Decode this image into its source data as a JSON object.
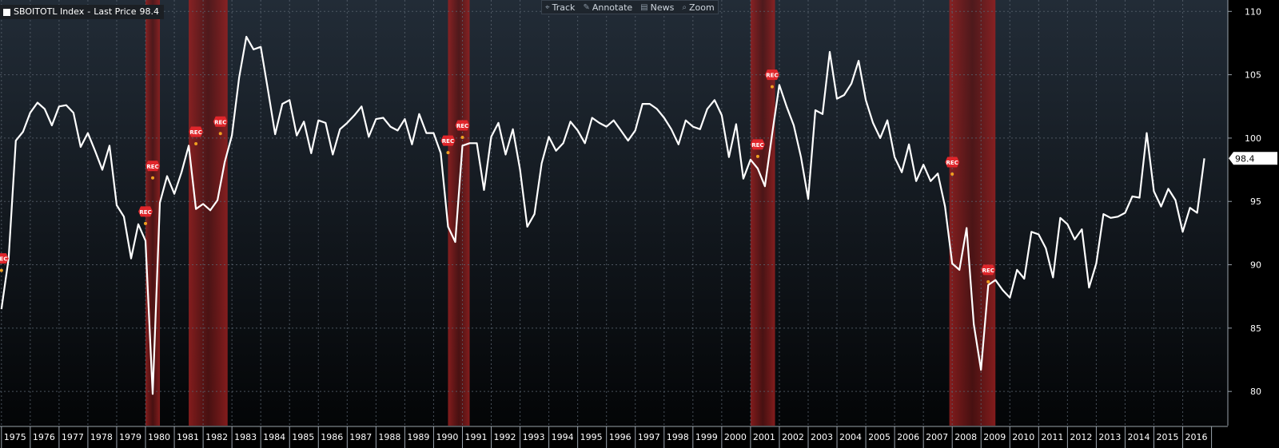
{
  "legend": {
    "ticker": "SBOITOTL Index",
    "separator": " - ",
    "label": "Last Price",
    "last_value": "98.4"
  },
  "toolbar": [
    {
      "name": "track",
      "label": "Track",
      "icon": "crosshair-icon",
      "glyph": "⌖"
    },
    {
      "name": "annotate",
      "label": "Annotate",
      "icon": "pencil-icon",
      "glyph": "✎"
    },
    {
      "name": "news",
      "label": "News",
      "icon": "news-icon",
      "glyph": "▤"
    },
    {
      "name": "zoom",
      "label": "Zoom",
      "icon": "magnifier-icon",
      "glyph": "⌕"
    }
  ],
  "recession_marker_label": "REC",
  "last_price_label": "98.4",
  "colors": {
    "line": "#ffffff",
    "recession": "#8b1c1c",
    "marker": "#e0262b",
    "marker_dot": "#f0a020",
    "grid": "#5a6470",
    "bg_top": "#222c37",
    "bg_bottom": "#020304",
    "axis_text": "#ffffff"
  },
  "chart_data": {
    "type": "line",
    "series": [
      {
        "name": "SBOITOTL Index - Last Price",
        "points": [
          [
            1975.0,
            86.5
          ],
          [
            1975.25,
            90.5
          ],
          [
            1975.5,
            99.8
          ],
          [
            1975.75,
            100.5
          ],
          [
            1976.0,
            102.0
          ],
          [
            1976.25,
            102.8
          ],
          [
            1976.5,
            102.3
          ],
          [
            1976.75,
            101.0
          ],
          [
            1977.0,
            102.5
          ],
          [
            1977.25,
            102.6
          ],
          [
            1977.5,
            102.0
          ],
          [
            1977.75,
            99.3
          ],
          [
            1978.0,
            100.4
          ],
          [
            1978.25,
            99.0
          ],
          [
            1978.5,
            97.5
          ],
          [
            1978.75,
            99.4
          ],
          [
            1979.0,
            94.7
          ],
          [
            1979.25,
            93.8
          ],
          [
            1979.5,
            90.5
          ],
          [
            1979.75,
            93.2
          ],
          [
            1980.0,
            91.9
          ],
          [
            1980.25,
            79.8
          ],
          [
            1980.5,
            94.9
          ],
          [
            1980.75,
            97.0
          ],
          [
            1981.0,
            95.6
          ],
          [
            1981.25,
            97.3
          ],
          [
            1981.5,
            99.4
          ],
          [
            1981.75,
            94.4
          ],
          [
            1982.0,
            94.8
          ],
          [
            1982.25,
            94.3
          ],
          [
            1982.5,
            95.1
          ],
          [
            1982.75,
            98.1
          ],
          [
            1983.0,
            100.2
          ],
          [
            1983.25,
            104.8
          ],
          [
            1983.5,
            108.0
          ],
          [
            1983.75,
            107.0
          ],
          [
            1984.0,
            107.2
          ],
          [
            1984.25,
            103.8
          ],
          [
            1984.5,
            100.3
          ],
          [
            1984.75,
            102.7
          ],
          [
            1985.0,
            103.0
          ],
          [
            1985.25,
            100.2
          ],
          [
            1985.5,
            101.3
          ],
          [
            1985.75,
            98.8
          ],
          [
            1986.0,
            101.4
          ],
          [
            1986.25,
            101.2
          ],
          [
            1986.5,
            98.7
          ],
          [
            1986.75,
            100.7
          ],
          [
            1987.0,
            101.2
          ],
          [
            1987.25,
            101.8
          ],
          [
            1987.5,
            102.5
          ],
          [
            1987.75,
            100.1
          ],
          [
            1988.0,
            101.5
          ],
          [
            1988.25,
            101.6
          ],
          [
            1988.5,
            100.9
          ],
          [
            1988.75,
            100.6
          ],
          [
            1989.0,
            101.5
          ],
          [
            1989.25,
            99.5
          ],
          [
            1989.5,
            101.9
          ],
          [
            1989.75,
            100.4
          ],
          [
            1990.0,
            100.4
          ],
          [
            1990.25,
            98.8
          ],
          [
            1990.5,
            93.0
          ],
          [
            1990.75,
            91.8
          ],
          [
            1991.0,
            99.4
          ],
          [
            1991.25,
            99.6
          ],
          [
            1991.5,
            99.6
          ],
          [
            1991.75,
            95.9
          ],
          [
            1992.0,
            100.1
          ],
          [
            1992.25,
            101.2
          ],
          [
            1992.5,
            98.7
          ],
          [
            1992.75,
            100.7
          ],
          [
            1993.0,
            97.5
          ],
          [
            1993.25,
            93.0
          ],
          [
            1993.5,
            94.0
          ],
          [
            1993.75,
            98.0
          ],
          [
            1994.0,
            100.1
          ],
          [
            1994.25,
            99.0
          ],
          [
            1994.5,
            99.6
          ],
          [
            1994.75,
            101.3
          ],
          [
            1995.0,
            100.6
          ],
          [
            1995.25,
            99.6
          ],
          [
            1995.5,
            101.6
          ],
          [
            1995.75,
            101.2
          ],
          [
            1996.0,
            100.9
          ],
          [
            1996.25,
            101.4
          ],
          [
            1996.5,
            100.6
          ],
          [
            1996.75,
            99.8
          ],
          [
            1997.0,
            100.6
          ],
          [
            1997.25,
            102.7
          ],
          [
            1997.5,
            102.7
          ],
          [
            1997.75,
            102.3
          ],
          [
            1998.0,
            101.6
          ],
          [
            1998.25,
            100.7
          ],
          [
            1998.5,
            99.5
          ],
          [
            1998.75,
            101.4
          ],
          [
            1999.0,
            100.9
          ],
          [
            1999.25,
            100.7
          ],
          [
            1999.5,
            102.3
          ],
          [
            1999.75,
            103.0
          ],
          [
            2000.0,
            101.8
          ],
          [
            2000.25,
            98.5
          ],
          [
            2000.5,
            101.1
          ],
          [
            2000.75,
            96.8
          ],
          [
            2001.0,
            98.3
          ],
          [
            2001.25,
            97.6
          ],
          [
            2001.5,
            96.2
          ],
          [
            2001.75,
            100.3
          ],
          [
            2002.0,
            104.2
          ],
          [
            2002.25,
            102.5
          ],
          [
            2002.5,
            101.0
          ],
          [
            2002.75,
            98.5
          ],
          [
            2003.0,
            95.2
          ],
          [
            2003.25,
            102.2
          ],
          [
            2003.5,
            101.9
          ],
          [
            2003.75,
            106.8
          ],
          [
            2004.0,
            103.1
          ],
          [
            2004.25,
            103.4
          ],
          [
            2004.5,
            104.3
          ],
          [
            2004.75,
            106.1
          ],
          [
            2005.0,
            103.0
          ],
          [
            2005.25,
            101.2
          ],
          [
            2005.5,
            100.0
          ],
          [
            2005.75,
            101.4
          ],
          [
            2006.0,
            98.5
          ],
          [
            2006.25,
            97.3
          ],
          [
            2006.5,
            99.5
          ],
          [
            2006.75,
            96.6
          ],
          [
            2007.0,
            97.9
          ],
          [
            2007.25,
            96.6
          ],
          [
            2007.5,
            97.2
          ],
          [
            2007.75,
            94.6
          ],
          [
            2008.0,
            90.1
          ],
          [
            2008.25,
            89.6
          ],
          [
            2008.5,
            92.9
          ],
          [
            2008.75,
            85.3
          ],
          [
            2009.0,
            81.7
          ],
          [
            2009.25,
            88.4
          ],
          [
            2009.5,
            88.8
          ],
          [
            2009.75,
            88.0
          ],
          [
            2010.0,
            87.4
          ],
          [
            2010.25,
            89.6
          ],
          [
            2010.5,
            88.9
          ],
          [
            2010.75,
            92.6
          ],
          [
            2011.0,
            92.4
          ],
          [
            2011.25,
            91.3
          ],
          [
            2011.5,
            89.0
          ],
          [
            2011.75,
            93.7
          ],
          [
            2012.0,
            93.2
          ],
          [
            2012.25,
            92.0
          ],
          [
            2012.5,
            92.8
          ],
          [
            2012.75,
            88.2
          ],
          [
            2013.0,
            90.1
          ],
          [
            2013.25,
            94.0
          ],
          [
            2013.5,
            93.7
          ],
          [
            2013.75,
            93.8
          ],
          [
            2014.0,
            94.1
          ],
          [
            2014.25,
            95.4
          ],
          [
            2014.5,
            95.3
          ],
          [
            2014.75,
            100.4
          ],
          [
            2015.0,
            95.8
          ],
          [
            2015.25,
            94.6
          ],
          [
            2015.5,
            96.0
          ],
          [
            2015.75,
            95.1
          ],
          [
            2016.0,
            92.6
          ],
          [
            2016.25,
            94.5
          ],
          [
            2016.5,
            94.1
          ],
          [
            2016.75,
            98.4
          ]
        ]
      }
    ],
    "recessions": [
      [
        1980.0,
        1980.5
      ],
      [
        1981.5,
        1982.85
      ],
      [
        1990.5,
        1991.25
      ],
      [
        2001.0,
        2001.85
      ],
      [
        2007.9,
        2009.5
      ]
    ],
    "rec_markers": [
      {
        "x": 1975.0,
        "y": 90.5
      },
      {
        "x": 1980.0,
        "y": 94.2
      },
      {
        "x": 1980.25,
        "y": 97.8
      },
      {
        "x": 1981.75,
        "y": 100.5
      },
      {
        "x": 1982.6,
        "y": 101.3
      },
      {
        "x": 1990.5,
        "y": 99.8
      },
      {
        "x": 1991.0,
        "y": 101.0
      },
      {
        "x": 2001.25,
        "y": 99.5
      },
      {
        "x": 2001.75,
        "y": 105.0
      },
      {
        "x": 2008.0,
        "y": 98.1
      },
      {
        "x": 2009.25,
        "y": 89.6
      }
    ],
    "x_ticks": [
      1975,
      1976,
      1977,
      1978,
      1979,
      1980,
      1981,
      1982,
      1983,
      1984,
      1985,
      1986,
      1987,
      1988,
      1989,
      1990,
      1991,
      1992,
      1993,
      1994,
      1995,
      1996,
      1997,
      1998,
      1999,
      2000,
      2001,
      2002,
      2003,
      2004,
      2005,
      2006,
      2007,
      2008,
      2009,
      2010,
      2011,
      2012,
      2013,
      2014,
      2015,
      2016
    ],
    "y_ticks": [
      80,
      85,
      90,
      95,
      100,
      105,
      110
    ],
    "xlim": [
      1974.95,
      2017.4
    ],
    "ylim": [
      77.3,
      110.9
    ],
    "grid": true,
    "y_axis_side": "right",
    "legend_position": "top-left"
  }
}
